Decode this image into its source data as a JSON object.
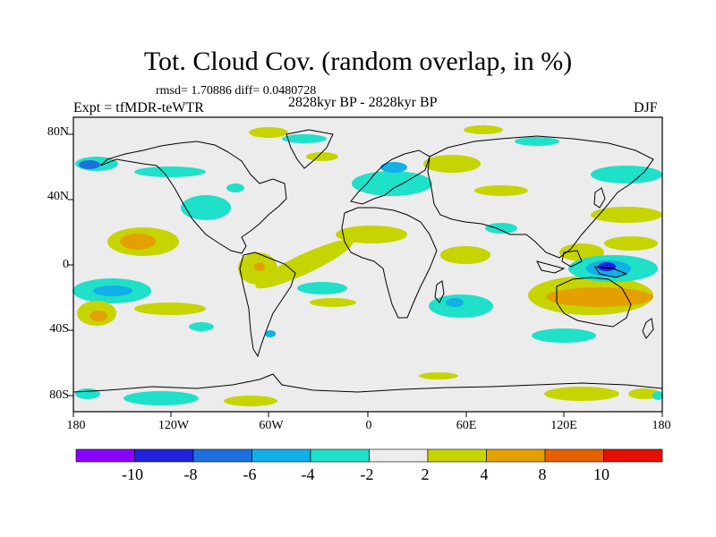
{
  "title": "Tot. Cloud Cov. (random overlap, in %)",
  "stats": "rmsd= 1.70886 diff= 0.0480728",
  "expt": "Expt = tfMDR-teWTR",
  "period": "2828kyr BP - 2828kyr BP",
  "season": "DJF",
  "y_ticks": [
    "80N",
    "40N",
    "0",
    "40S",
    "80S"
  ],
  "x_ticks": [
    "180",
    "120W",
    "60W",
    "0",
    "60E",
    "120E",
    "180"
  ],
  "colorbar": {
    "colors": [
      "#8b00ff",
      "#2222dd",
      "#1e6fe0",
      "#12b0e6",
      "#1fe0c8",
      "#ececec",
      "#c6d400",
      "#e4a000",
      "#e46000",
      "#e61000"
    ],
    "labels": [
      "-10",
      "-8",
      "-6",
      "-4",
      "-2",
      "2",
      "4",
      "8",
      "10"
    ]
  },
  "colors": {
    "background": "#ececec",
    "land_outline": "#000000"
  }
}
